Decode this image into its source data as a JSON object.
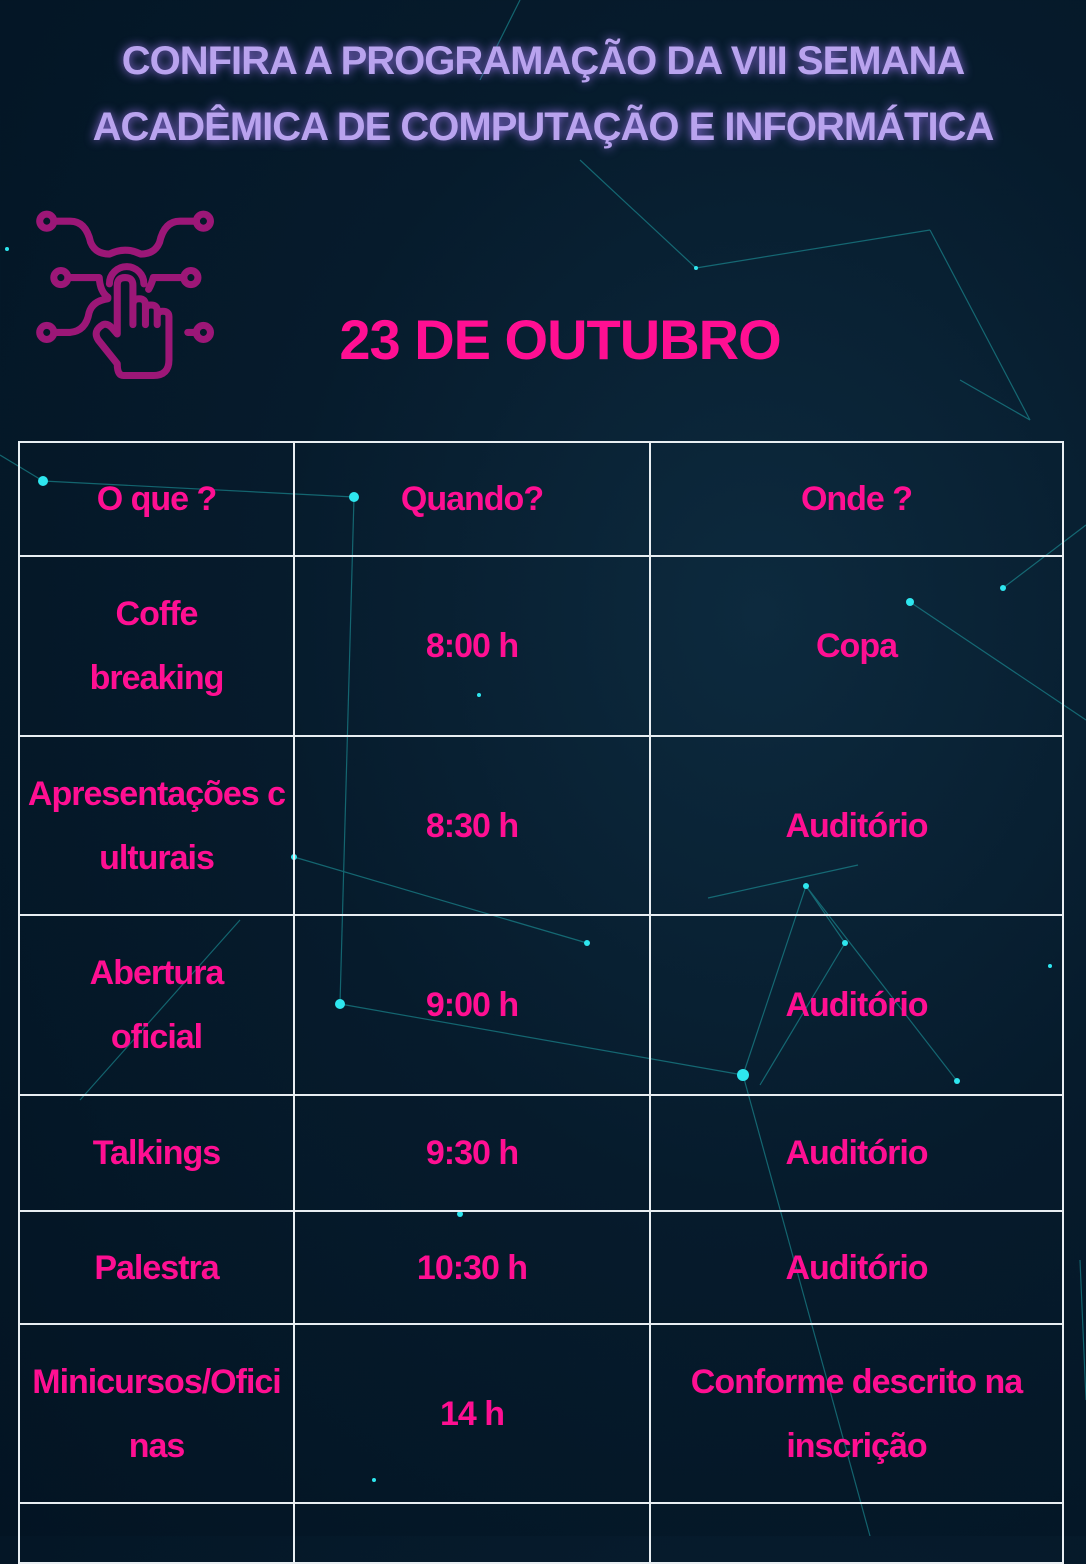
{
  "title": {
    "line1": "CONFIRA A PROGRAMAÇÃO DA VIII SEMANA",
    "line2": "ACADÊMICA DE COMPUTAÇÃO E INFORMÁTICA"
  },
  "date": "23 DE OUTUBRO",
  "icon": "touch-circuit-hand-icon",
  "colors": {
    "title": "#b9a3ee",
    "accent": "#ff0f92",
    "icon": "#9c1777",
    "background": "#061b2c",
    "lines": "#e8eef2"
  },
  "table": {
    "headers": [
      "O que ?",
      "Quando?",
      "Onde ?"
    ],
    "rows": [
      {
        "what": "Coffe breaking",
        "when": "8:00 h",
        "where": "Copa"
      },
      {
        "what": "Apresentações culturais",
        "when": "8:30 h",
        "where": "Auditório"
      },
      {
        "what": "Abertura oficial",
        "when": "9:00 h",
        "where": "Auditório"
      },
      {
        "what": "Talkings",
        "when": "9:30 h",
        "where": "Auditório"
      },
      {
        "what": "Palestra",
        "when": "10:30 h",
        "where": "Auditório"
      },
      {
        "what": "Minicursos/Oficinas",
        "when": "14 h",
        "where": "Conforme descrito na inscrição"
      }
    ]
  }
}
